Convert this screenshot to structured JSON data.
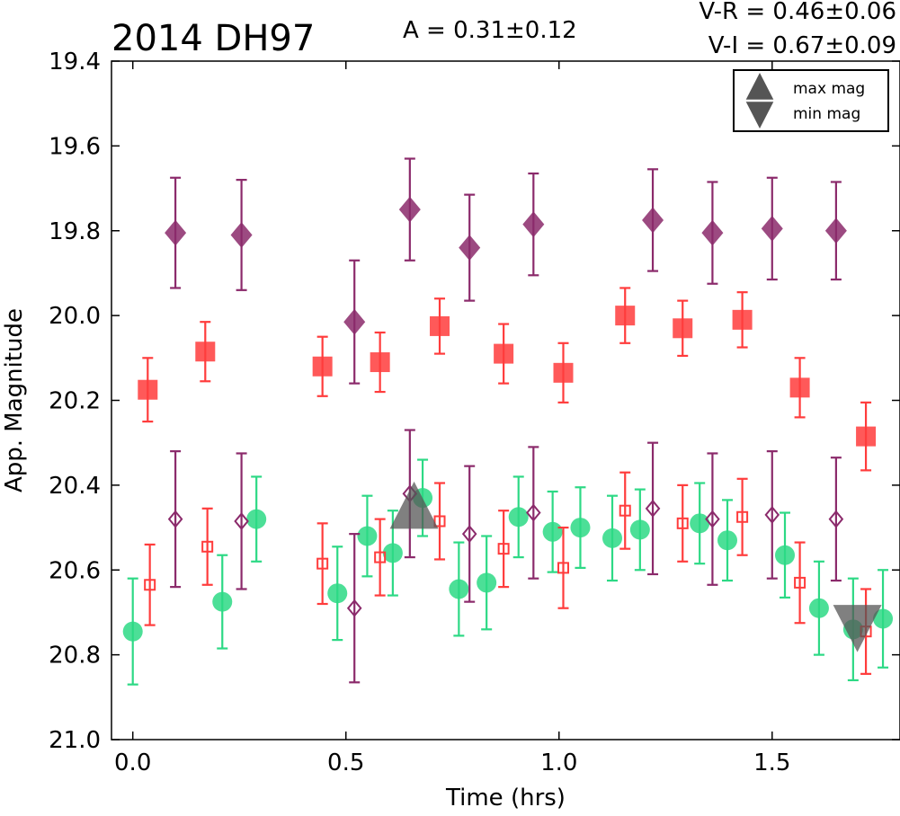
{
  "chart_data": {
    "type": "scatter",
    "title": "2014 DH97",
    "annotations": {
      "amplitude": "A  = 0.31±0.12",
      "v_r": "V-R = 0.46±0.06",
      "v_i": "V-I  = 0.67±0.09"
    },
    "xlabel": "Time (hrs)",
    "ylabel": "App. Magnitude",
    "xlim": [
      -0.05,
      1.8
    ],
    "ylim": [
      21.0,
      19.4
    ],
    "y_inverted": true,
    "grid": false,
    "xticks": [
      "0.0",
      "0.5",
      "1.0",
      "1.5"
    ],
    "yticks": [
      "19.4",
      "19.6",
      "19.8",
      "20.0",
      "20.2",
      "20.4",
      "20.6",
      "20.8",
      "21.0"
    ],
    "legend": {
      "placement": "top-right",
      "entries": [
        {
          "label": "max mag",
          "marker": "triangle-up",
          "color": "#555555"
        },
        {
          "label": "min mag",
          "marker": "triangle-down",
          "color": "#555555"
        }
      ]
    },
    "extrema": [
      {
        "kind": "max",
        "x": 0.66,
        "y": 20.455
      },
      {
        "kind": "min",
        "x": 1.7,
        "y": 20.73
      }
    ],
    "series": [
      {
        "marker": "diamond",
        "fill": "filled",
        "color": "#8b2a6b",
        "points": [
          {
            "x": 0.1,
            "y": 19.805,
            "err": 0.13
          },
          {
            "x": 0.255,
            "y": 19.81,
            "err": 0.13
          },
          {
            "x": 0.52,
            "y": 20.015,
            "err": 0.145
          },
          {
            "x": 0.65,
            "y": 19.75,
            "err": 0.12
          },
          {
            "x": 0.79,
            "y": 19.84,
            "err": 0.125
          },
          {
            "x": 0.94,
            "y": 19.785,
            "err": 0.12
          },
          {
            "x": 1.22,
            "y": 19.775,
            "err": 0.12
          },
          {
            "x": 1.36,
            "y": 19.805,
            "err": 0.12
          },
          {
            "x": 1.5,
            "y": 19.795,
            "err": 0.12
          },
          {
            "x": 1.65,
            "y": 19.8,
            "err": 0.115
          }
        ]
      },
      {
        "marker": "square",
        "fill": "filled",
        "color": "#ff3c3c",
        "points": [
          {
            "x": 0.035,
            "y": 20.175,
            "err": 0.075
          },
          {
            "x": 0.17,
            "y": 20.085,
            "err": 0.07
          },
          {
            "x": 0.445,
            "y": 20.12,
            "err": 0.07
          },
          {
            "x": 0.58,
            "y": 20.11,
            "err": 0.07
          },
          {
            "x": 0.72,
            "y": 20.025,
            "err": 0.065
          },
          {
            "x": 0.87,
            "y": 20.09,
            "err": 0.07
          },
          {
            "x": 1.01,
            "y": 20.135,
            "err": 0.07
          },
          {
            "x": 1.155,
            "y": 20.0,
            "err": 0.065
          },
          {
            "x": 1.29,
            "y": 20.03,
            "err": 0.065
          },
          {
            "x": 1.43,
            "y": 20.01,
            "err": 0.065
          },
          {
            "x": 1.565,
            "y": 20.17,
            "err": 0.07
          },
          {
            "x": 1.72,
            "y": 20.285,
            "err": 0.08
          }
        ]
      },
      {
        "marker": "circle",
        "fill": "filled",
        "color": "#2dd985",
        "points": [
          {
            "x": 0.0,
            "y": 20.745,
            "err": 0.125
          },
          {
            "x": 0.21,
            "y": 20.675,
            "err": 0.11
          },
          {
            "x": 0.29,
            "y": 20.48,
            "err": 0.1
          },
          {
            "x": 0.48,
            "y": 20.655,
            "err": 0.11
          },
          {
            "x": 0.55,
            "y": 20.52,
            "err": 0.095
          },
          {
            "x": 0.61,
            "y": 20.56,
            "err": 0.1
          },
          {
            "x": 0.68,
            "y": 20.43,
            "err": 0.09
          },
          {
            "x": 0.765,
            "y": 20.645,
            "err": 0.11
          },
          {
            "x": 0.83,
            "y": 20.63,
            "err": 0.11
          },
          {
            "x": 0.905,
            "y": 20.475,
            "err": 0.095
          },
          {
            "x": 0.985,
            "y": 20.51,
            "err": 0.095
          },
          {
            "x": 1.05,
            "y": 20.5,
            "err": 0.095
          },
          {
            "x": 1.125,
            "y": 20.525,
            "err": 0.1
          },
          {
            "x": 1.19,
            "y": 20.505,
            "err": 0.095
          },
          {
            "x": 1.33,
            "y": 20.49,
            "err": 0.095
          },
          {
            "x": 1.395,
            "y": 20.53,
            "err": 0.095
          },
          {
            "x": 1.53,
            "y": 20.565,
            "err": 0.1
          },
          {
            "x": 1.61,
            "y": 20.69,
            "err": 0.11
          },
          {
            "x": 1.69,
            "y": 20.74,
            "err": 0.12
          },
          {
            "x": 1.76,
            "y": 20.715,
            "err": 0.115
          }
        ]
      },
      {
        "marker": "square",
        "fill": "open",
        "color": "#ff3c3c",
        "points": [
          {
            "x": 0.04,
            "y": 20.635,
            "err": 0.095
          },
          {
            "x": 0.175,
            "y": 20.545,
            "err": 0.09
          },
          {
            "x": 0.445,
            "y": 20.585,
            "err": 0.095
          },
          {
            "x": 0.58,
            "y": 20.57,
            "err": 0.09
          },
          {
            "x": 0.72,
            "y": 20.485,
            "err": 0.09
          },
          {
            "x": 0.87,
            "y": 20.55,
            "err": 0.09
          },
          {
            "x": 1.01,
            "y": 20.595,
            "err": 0.095
          },
          {
            "x": 1.155,
            "y": 20.46,
            "err": 0.09
          },
          {
            "x": 1.29,
            "y": 20.49,
            "err": 0.09
          },
          {
            "x": 1.43,
            "y": 20.475,
            "err": 0.09
          },
          {
            "x": 1.565,
            "y": 20.63,
            "err": 0.095
          },
          {
            "x": 1.72,
            "y": 20.745,
            "err": 0.1
          }
        ]
      },
      {
        "marker": "diamond",
        "fill": "open",
        "color": "#8b2a6b",
        "points": [
          {
            "x": 0.1,
            "y": 20.48,
            "err": 0.16
          },
          {
            "x": 0.255,
            "y": 20.485,
            "err": 0.16
          },
          {
            "x": 0.52,
            "y": 20.69,
            "err": 0.175
          },
          {
            "x": 0.65,
            "y": 20.42,
            "err": 0.15
          },
          {
            "x": 0.79,
            "y": 20.515,
            "err": 0.16
          },
          {
            "x": 0.94,
            "y": 20.465,
            "err": 0.155
          },
          {
            "x": 1.22,
            "y": 20.455,
            "err": 0.155
          },
          {
            "x": 1.36,
            "y": 20.48,
            "err": 0.155
          },
          {
            "x": 1.5,
            "y": 20.47,
            "err": 0.15
          },
          {
            "x": 1.65,
            "y": 20.48,
            "err": 0.145
          }
        ]
      }
    ]
  }
}
